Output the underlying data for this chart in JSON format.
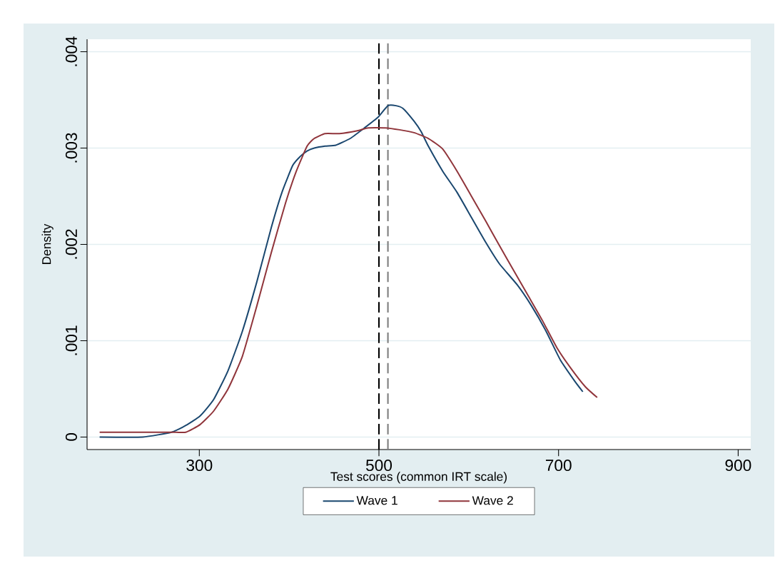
{
  "chart_data": {
    "type": "line",
    "xlabel": "Test scores (common IRT scale)",
    "ylabel": "Density",
    "xlim": [
      175,
      914
    ],
    "ylim": [
      -0.00013,
      0.00413
    ],
    "xticks": [
      300,
      500,
      700,
      900
    ],
    "yticks": [
      0,
      {
        "value": 0.001,
        "label": ".001"
      },
      {
        "value": 0.002,
        "label": ".002"
      },
      {
        "value": 0.003,
        "label": ".003"
      },
      {
        "value": 0.004,
        "label": ".004"
      }
    ],
    "grid": "y",
    "legend": "bottom",
    "marker": "none",
    "line_style": "solid",
    "ref_lines": [
      {
        "axis": "x",
        "value": 500,
        "color": "#000000",
        "line_style": "dashed"
      },
      {
        "axis": "x",
        "value": 510,
        "color": "#808080",
        "line_style": "dashed"
      }
    ],
    "series": [
      {
        "name": "Wave 1",
        "color": "#1a476f",
        "x": [
          189,
          237,
          269,
          285,
          301,
          316,
          332,
          348,
          364,
          380,
          392,
          404,
          412,
          420,
          428,
          440,
          452,
          468,
          484,
          499,
          510,
          519,
          527,
          539,
          547,
          555,
          571,
          587,
          603,
          619,
          634,
          654,
          670,
          686,
          702,
          718,
          727
        ],
        "values": [
          0.0,
          0.0,
          5e-05,
          0.00012,
          0.00022,
          0.00039,
          0.00069,
          0.0011,
          0.00161,
          0.00217,
          0.00254,
          0.00282,
          0.00291,
          0.00297,
          0.003,
          0.00302,
          0.00303,
          0.0031,
          0.00321,
          0.00332,
          0.00344,
          0.00344,
          0.00341,
          0.00328,
          0.00317,
          0.00302,
          0.00276,
          0.00254,
          0.00228,
          0.00202,
          0.0018,
          0.00158,
          0.00136,
          0.0011,
          0.0008,
          0.00058,
          0.00047
        ]
      },
      {
        "name": "Wave 2",
        "color": "#90353b",
        "x": [
          189,
          237,
          269,
          285,
          301,
          316,
          332,
          348,
          364,
          380,
          396,
          408,
          420,
          428,
          440,
          456,
          476,
          488,
          507,
          523,
          539,
          555,
          571,
          587,
          603,
          619,
          634,
          650,
          666,
          682,
          698,
          714,
          730,
          743
        ],
        "values": [
          5e-05,
          5e-05,
          5e-05,
          5e-05,
          0.00013,
          0.00027,
          0.0005,
          0.00084,
          0.00136,
          0.00191,
          0.00243,
          0.00276,
          0.00302,
          0.0031,
          0.00315,
          0.00315,
          0.00318,
          0.00321,
          0.00321,
          0.00319,
          0.00316,
          0.0031,
          0.00299,
          0.00276,
          0.0025,
          0.00224,
          0.00199,
          0.00173,
          0.00147,
          0.00121,
          0.00093,
          0.00071,
          0.00052,
          0.00041
        ]
      }
    ]
  }
}
